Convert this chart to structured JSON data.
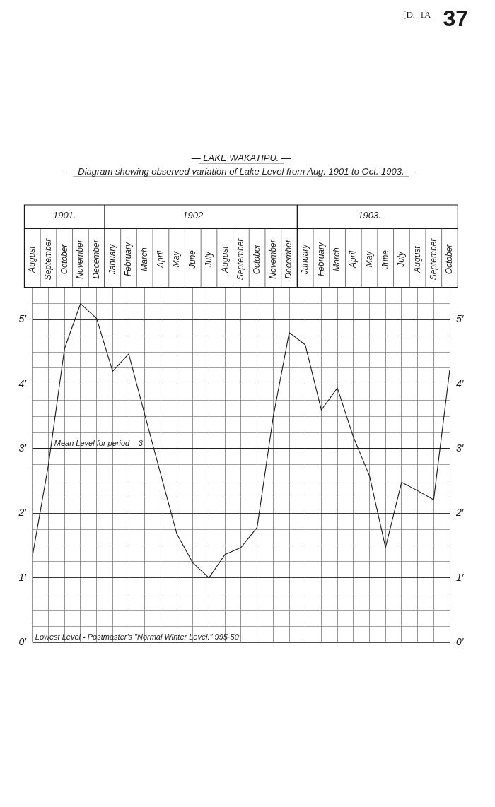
{
  "chart_data": {
    "type": "line",
    "title": "— LAKE WAKATIPU. —",
    "subtitle": "— Diagram shewing observed variation of Lake Level from Aug. 1901 to Oct. 1903. —",
    "x": [
      "1901-08",
      "1901-09",
      "1901-10",
      "1901-11",
      "1901-12",
      "1902-01",
      "1902-02",
      "1902-03",
      "1902-04",
      "1902-05",
      "1902-06",
      "1902-07",
      "1902-08",
      "1902-09",
      "1902-10",
      "1902-11",
      "1902-12",
      "1903-01",
      "1903-02",
      "1903-03",
      "1903-04",
      "1903-05",
      "1903-06",
      "1903-07",
      "1903-08",
      "1903-09",
      "1903-10"
    ],
    "values": [
      1.33,
      2.75,
      4.55,
      5.25,
      5.02,
      4.2,
      4.47,
      3.53,
      2.6,
      1.68,
      1.23,
      1.0,
      1.36,
      1.47,
      1.78,
      3.49,
      4.8,
      4.61,
      3.6,
      3.94,
      3.18,
      2.58,
      1.47,
      2.48,
      2.35,
      2.21,
      4.22
    ],
    "color": "#1a1a1a",
    "xlim": [
      "1901-08",
      "1903-10"
    ],
    "xticks": [
      {
        "value": "1901-08",
        "label": "August"
      },
      {
        "value": "1901-09",
        "label": "September"
      },
      {
        "value": "1901-10",
        "label": "October"
      },
      {
        "value": "1901-11",
        "label": "November"
      },
      {
        "value": "1901-12",
        "label": "December"
      },
      {
        "value": "1902-01",
        "label": "January"
      },
      {
        "value": "1902-02",
        "label": "February"
      },
      {
        "value": "1902-03",
        "label": "March"
      },
      {
        "value": "1902-04",
        "label": "April"
      },
      {
        "value": "1902-05",
        "label": "May"
      },
      {
        "value": "1902-06",
        "label": "June"
      },
      {
        "value": "1902-07",
        "label": "July"
      },
      {
        "value": "1902-08",
        "label": "August"
      },
      {
        "value": "1902-09",
        "label": "September"
      },
      {
        "value": "1902-10",
        "label": "October"
      },
      {
        "value": "1902-11",
        "label": "November"
      },
      {
        "value": "1902-12",
        "label": "December"
      },
      {
        "value": "1903-01",
        "label": "January"
      },
      {
        "value": "1903-02",
        "label": "February"
      },
      {
        "value": "1903-03",
        "label": "March"
      },
      {
        "value": "1903-04",
        "label": "April"
      },
      {
        "value": "1903-05",
        "label": "May"
      },
      {
        "value": "1903-06",
        "label": "June"
      },
      {
        "value": "1903-07",
        "label": "July"
      },
      {
        "value": "1903-08",
        "label": "August"
      },
      {
        "value": "1903-09",
        "label": "September"
      },
      {
        "value": "1903-10",
        "label": "October"
      }
    ],
    "x2lim": [
      "1901-08",
      "1903-10"
    ],
    "x2ticks": [
      {
        "value": "1901-10",
        "label": "1901."
      },
      {
        "value": "1902-06",
        "label": "1902"
      },
      {
        "value": "1903-05",
        "label": "1903."
      }
    ],
    "ylim": [
      0,
      5.5
    ],
    "yticks": [
      {
        "value": 0,
        "label": "0′"
      },
      {
        "value": 0.25,
        "label": null
      },
      {
        "value": 0.5,
        "label": null
      },
      {
        "value": 0.75,
        "label": null
      },
      {
        "value": 1,
        "label": "1′"
      },
      {
        "value": 1.25,
        "label": null
      },
      {
        "value": 1.5,
        "label": null
      },
      {
        "value": 1.75,
        "label": null
      },
      {
        "value": 2,
        "label": "2′"
      },
      {
        "value": 2.25,
        "label": null
      },
      {
        "value": 2.5,
        "label": null
      },
      {
        "value": 2.75,
        "label": null
      },
      {
        "value": 3,
        "label": "3′"
      },
      {
        "value": 3.25,
        "label": null
      },
      {
        "value": 3.5,
        "label": null
      },
      {
        "value": 3.75,
        "label": null
      },
      {
        "value": 4,
        "label": "4′"
      },
      {
        "value": 4.25,
        "label": null
      },
      {
        "value": 4.5,
        "label": null
      },
      {
        "value": 4.75,
        "label": null
      },
      {
        "value": 5,
        "label": "5′"
      },
      {
        "value": 5.25,
        "label": null
      },
      {
        "value": 5.5,
        "label": null
      }
    ],
    "y2lim": [
      0,
      5.5
    ],
    "y2ticks": [
      {
        "value": 0,
        "label": "0′"
      },
      {
        "value": 0.25,
        "label": null
      },
      {
        "value": 0.5,
        "label": null
      },
      {
        "value": 0.75,
        "label": null
      },
      {
        "value": 1,
        "label": "1′"
      },
      {
        "value": 1.25,
        "label": null
      },
      {
        "value": 1.5,
        "label": null
      },
      {
        "value": 1.75,
        "label": null
      },
      {
        "value": 2,
        "label": "2′"
      },
      {
        "value": 2.25,
        "label": null
      },
      {
        "value": 2.5,
        "label": null
      },
      {
        "value": 2.75,
        "label": null
      },
      {
        "value": 3,
        "label": "3′"
      },
      {
        "value": 3.25,
        "label": null
      },
      {
        "value": 3.5,
        "label": null
      },
      {
        "value": 3.75,
        "label": null
      },
      {
        "value": 4,
        "label": "4′"
      },
      {
        "value": 4.25,
        "label": null
      },
      {
        "value": 4.5,
        "label": null
      },
      {
        "value": 4.75,
        "label": null
      },
      {
        "value": 5,
        "label": "5′"
      },
      {
        "value": 5.25,
        "label": null
      },
      {
        "value": 5.5,
        "label": null
      }
    ],
    "ref_lines": [
      {
        "axis": "y",
        "value": 3,
        "label": "Mean Level for period = 3′"
      },
      {
        "axis": "y",
        "value": 0,
        "label": "Lowest Level - Postmaster's \"Normal Winter Level.\" 995·50′"
      }
    ],
    "annotations": [
      "[D.–1A",
      "37"
    ],
    "grid": true
  }
}
